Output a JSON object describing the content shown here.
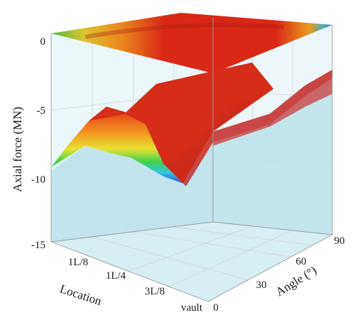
{
  "chart_data": {
    "type": "surface3d",
    "zlabel": "Axial force (MN)",
    "xlabel": "Location",
    "ylabel": "Angle (°)",
    "z_ticks": [
      "0",
      "-5",
      "-10",
      "-15"
    ],
    "x_ticks": [
      "1L/8",
      "1L/4",
      "3L/8",
      "vault"
    ],
    "y_ticks": [
      "0",
      "30",
      "60",
      "90"
    ],
    "zlim": [
      -15,
      0
    ],
    "colorscale": [
      "#6a3fb5",
      "#2f7be0",
      "#31c6e6",
      "#3fd24a",
      "#e6e234",
      "#f39a20",
      "#e02a17",
      "#c9231a"
    ],
    "wall_color": "#bfe2ea",
    "surfaces": [
      {
        "name": "top-contour",
        "points": [
          {
            "location": "0",
            "angle": 0,
            "force": 0
          },
          {
            "location": "vault",
            "angle": 0,
            "force": 0
          },
          {
            "location": "vault",
            "angle": 90,
            "force": 0
          },
          {
            "location": "0",
            "angle": 90,
            "force": 0
          }
        ]
      },
      {
        "name": "middle-surface-front-profile",
        "front_edge": [
          {
            "location": "0",
            "force": -9.5
          },
          {
            "location": "1L/16",
            "force": -8.3
          },
          {
            "location": "1L/8",
            "force": -6.6
          },
          {
            "location": "3L/16",
            "force": -5.8
          },
          {
            "location": "1L/4",
            "force": -6.6
          },
          {
            "location": "5L/16",
            "force": -7.0
          },
          {
            "location": "3L/8",
            "force": -9.3
          },
          {
            "location": "vault",
            "force": -10.0
          }
        ]
      },
      {
        "name": "right-surface-profile",
        "angle_edge": [
          {
            "angle": 0,
            "force": -10.0
          },
          {
            "angle": 15,
            "force": -7.6
          },
          {
            "angle": 30,
            "force": -6.2
          },
          {
            "angle": 45,
            "force": -5.3
          },
          {
            "angle": 60,
            "force": -4.5
          },
          {
            "angle": 75,
            "force": -3.7
          },
          {
            "angle": 90,
            "force": -2.8
          }
        ]
      }
    ]
  }
}
